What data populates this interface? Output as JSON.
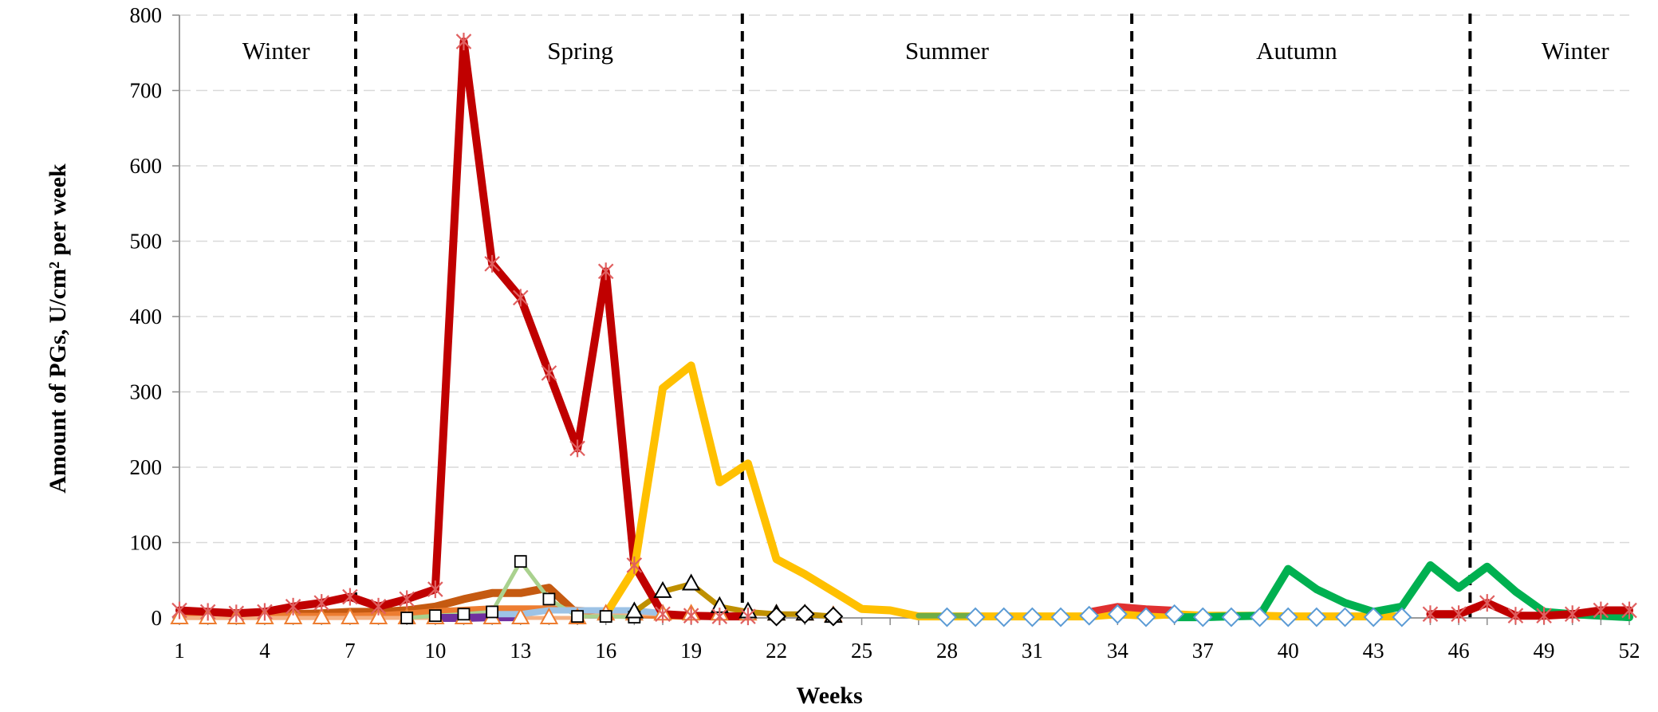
{
  "chart_data": {
    "type": "line",
    "title": "",
    "xlabel": "Weeks",
    "ylabel": "Amount of PGs, U/cm² per week",
    "xlim": [
      1,
      52
    ],
    "ylim": [
      0,
      800
    ],
    "xticks": [
      "1",
      "4",
      "7",
      "10",
      "13",
      "16",
      "19",
      "22",
      "25",
      "28",
      "31",
      "34",
      "37",
      "40",
      "43",
      "46",
      "49",
      "52"
    ],
    "yticks": [
      "0",
      "100",
      "200",
      "300",
      "400",
      "500",
      "600",
      "700",
      "800"
    ],
    "season_dividers": [
      7.2,
      20.8,
      34.5,
      46.4
    ],
    "season_labels": [
      {
        "text": "Winter",
        "center": 4.4
      },
      {
        "text": "Spring",
        "center": 15.1
      },
      {
        "text": "Summer",
        "center": 28.0
      },
      {
        "text": "Autumn",
        "center": 40.3
      },
      {
        "text": "Winter",
        "center": 50.1
      }
    ],
    "series": [
      {
        "name": "dark-orange",
        "color": "#c55a11",
        "width": 10,
        "marker": "none",
        "x": [
          1,
          2,
          3,
          4,
          5,
          6,
          7,
          8,
          9,
          10,
          11,
          12,
          13,
          14,
          15
        ],
        "y": [
          3,
          3,
          3,
          4,
          5,
          6,
          8,
          8,
          10,
          15,
          25,
          33,
          33,
          40,
          5
        ]
      },
      {
        "name": "orange",
        "color": "#ed7d31",
        "width": 9,
        "marker": "none",
        "x": [
          1,
          2,
          3,
          4,
          5,
          6,
          7,
          8,
          9,
          10,
          11,
          12,
          13,
          14,
          15,
          16,
          17,
          18,
          19
        ],
        "y": [
          2,
          2,
          2,
          2,
          2,
          2,
          2,
          3,
          5,
          8,
          10,
          12,
          12,
          12,
          10,
          8,
          5,
          3,
          2
        ]
      },
      {
        "name": "peach-triangles",
        "color": "#f4b183",
        "width": 5,
        "marker": "triangle",
        "markerColor": "#ed7d31",
        "x": [
          1,
          2,
          3,
          4,
          5,
          6,
          7,
          8,
          9,
          10,
          11,
          12,
          13,
          14,
          15,
          16,
          17,
          18,
          19,
          20,
          21,
          22,
          23,
          24
        ],
        "y": [
          0,
          0,
          0,
          0,
          0,
          0,
          0,
          0,
          0,
          0,
          0,
          0,
          0,
          0,
          0,
          5,
          5,
          5,
          5,
          5,
          5,
          5,
          5,
          3
        ]
      },
      {
        "name": "light-green-squares",
        "color": "#a9d18e",
        "width": 5,
        "marker": "square",
        "x": [
          9,
          10,
          11,
          12,
          13,
          14,
          15,
          16,
          17
        ],
        "y": [
          0,
          3,
          5,
          8,
          75,
          25,
          2,
          2,
          1
        ]
      },
      {
        "name": "purple",
        "color": "#7030a0",
        "width": 10,
        "marker": "none",
        "x": [
          10,
          11,
          12,
          13
        ],
        "y": [
          0,
          0,
          1,
          1
        ]
      },
      {
        "name": "light-blue",
        "color": "#9dc3e6",
        "width": 8,
        "marker": "none",
        "x": [
          12,
          13,
          14,
          15,
          16,
          17,
          18,
          19
        ],
        "y": [
          5,
          5,
          10,
          10,
          10,
          10,
          6,
          2
        ]
      },
      {
        "name": "olive-triangles",
        "color": "#bf9000",
        "width": 7,
        "marker": "triangle",
        "markerColor": "#000000",
        "x": [
          17,
          18,
          19,
          20,
          21,
          22,
          23,
          24
        ],
        "y": [
          8,
          35,
          45,
          15,
          8,
          5,
          5,
          2
        ]
      },
      {
        "name": "red-stars-spring",
        "color": "#c00000",
        "width": 10,
        "marker": "star",
        "x": [
          1,
          2,
          3,
          4,
          5,
          6,
          7,
          8,
          9,
          10,
          11,
          12,
          13,
          14,
          15,
          16,
          17,
          18,
          19,
          20,
          21
        ],
        "y": [
          10,
          8,
          6,
          8,
          15,
          20,
          28,
          15,
          25,
          38,
          765,
          470,
          425,
          325,
          225,
          460,
          70,
          5,
          3,
          2,
          2
        ]
      },
      {
        "name": "yellow",
        "color": "#ffc000",
        "width": 10,
        "marker": "none",
        "x": [
          16,
          17,
          18,
          19,
          20,
          21,
          22,
          23,
          24,
          25,
          26,
          27,
          28,
          29,
          30,
          31,
          32,
          33,
          34,
          35,
          36,
          37,
          38,
          39,
          40,
          41,
          42,
          43,
          44
        ],
        "y": [
          5,
          65,
          305,
          335,
          180,
          205,
          78,
          58,
          35,
          12,
          10,
          2,
          2,
          2,
          2,
          2,
          2,
          2,
          5,
          3,
          5,
          3,
          3,
          3,
          2,
          2,
          2,
          2,
          2
        ]
      },
      {
        "name": "black-diamonds",
        "color": "#000000",
        "width": 1,
        "marker": "diamond",
        "markerColor": "#000000",
        "x": [
          22,
          23,
          24
        ],
        "y": [
          2,
          5,
          2
        ]
      },
      {
        "name": "olive-summer",
        "color": "#70ad47",
        "width": 7,
        "marker": "none",
        "x": [
          27,
          28,
          29
        ],
        "y": [
          3,
          3,
          3
        ]
      },
      {
        "name": "red-summer",
        "color": "#e03030",
        "width": 9,
        "marker": "none",
        "x": [
          33,
          34,
          35,
          36
        ],
        "y": [
          8,
          15,
          12,
          10
        ]
      },
      {
        "name": "green",
        "color": "#00b050",
        "width": 10,
        "marker": "none",
        "x": [
          36,
          37,
          38,
          39,
          40,
          41,
          42,
          43,
          44,
          45,
          46,
          47,
          48,
          49,
          50,
          51,
          52
        ],
        "y": [
          1,
          1,
          2,
          3,
          65,
          38,
          20,
          8,
          15,
          70,
          40,
          68,
          35,
          8,
          5,
          3,
          1
        ]
      },
      {
        "name": "blue-diamonds",
        "color": "#5b9bd5",
        "width": 1,
        "marker": "diamond",
        "markerColor": "#5b9bd5",
        "x": [
          28,
          29,
          30,
          31,
          32,
          33,
          34,
          35,
          36,
          37,
          38,
          39,
          40,
          41,
          42,
          43,
          44
        ],
        "y": [
          1,
          1,
          1,
          1,
          1,
          3,
          5,
          1,
          5,
          1,
          1,
          1,
          1,
          1,
          1,
          1,
          1
        ]
      },
      {
        "name": "red-stars-winter",
        "color": "#c00000",
        "width": 10,
        "marker": "star",
        "x": [
          45,
          46,
          47,
          48,
          49,
          50,
          51,
          52
        ],
        "y": [
          5,
          5,
          20,
          3,
          3,
          5,
          10,
          10
        ]
      }
    ]
  }
}
